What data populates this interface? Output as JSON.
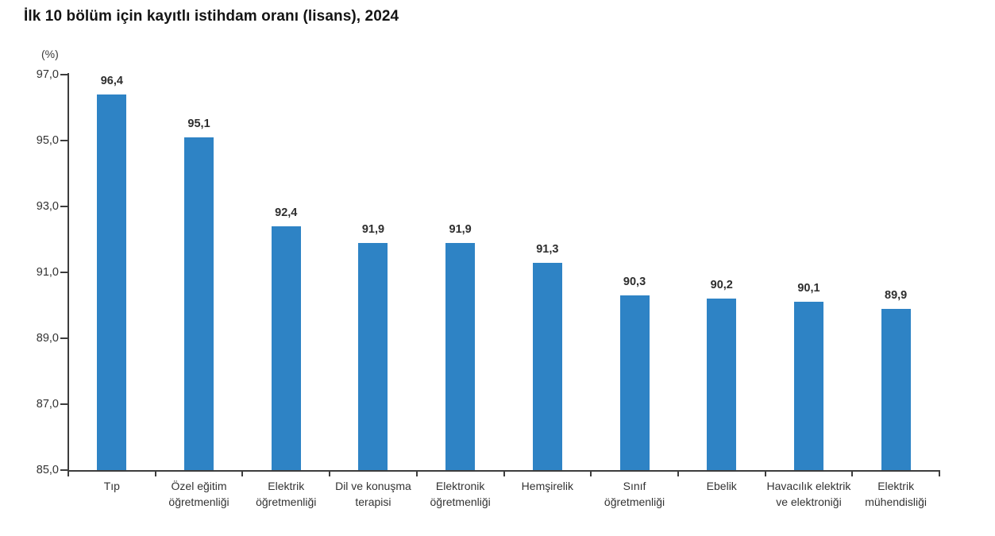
{
  "header": {
    "title": "İlk 10 bölüm için kayıtlı istihdam oranı (lisans), 2024",
    "unit_label": "(%)"
  },
  "colors": {
    "bar": "#2e83c5",
    "axis": "#3d3d3d",
    "title_text": "#141414",
    "label_text": "#333333"
  },
  "chart_data": {
    "type": "bar",
    "title": "İlk 10 bölüm için kayıtlı istihdam oranı (lisans), 2024",
    "xlabel": "",
    "ylabel": "(%)",
    "ylim": [
      85.0,
      97.0
    ],
    "ytick_step": 2.0,
    "ytick_labels": [
      "97,0",
      "95,0",
      "93,0",
      "91,0",
      "89,0",
      "87,0",
      "85,0"
    ],
    "ytick_values": [
      97.0,
      95.0,
      93.0,
      91.0,
      89.0,
      87.0,
      85.0
    ],
    "grid": false,
    "legend": "none",
    "bar_color": "#2e83c5",
    "categories": [
      "Tıp",
      "Özel eğitim öğretmenliği",
      "Elektrik öğretmenliği",
      "Dil ve konuşma terapisi",
      "Elektronik öğretmenliği",
      "Hemşirelik",
      "Sınıf öğretmenliği",
      "Ebelik",
      "Havacılık elektrik ve elektroniği",
      "Elektrik mühendisliği"
    ],
    "values": [
      96.4,
      95.1,
      92.4,
      91.9,
      91.9,
      91.3,
      90.3,
      90.2,
      90.1,
      89.9
    ],
    "value_labels": [
      "96,4",
      "95,1",
      "92,4",
      "91,9",
      "91,9",
      "91,3",
      "90,3",
      "90,2",
      "90,1",
      "89,9"
    ]
  }
}
